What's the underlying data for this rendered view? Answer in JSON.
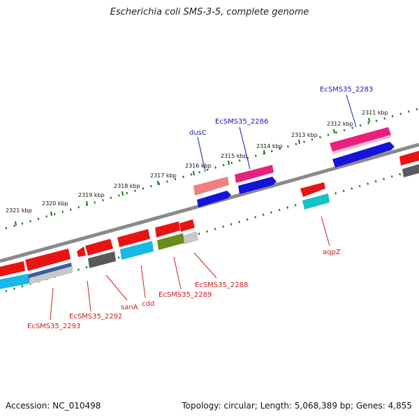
{
  "title": "Escherichia coli SMS-3-5, complete genome",
  "footer": {
    "accession": "Accession: NC_010498",
    "summary": "Topology: circular; Length: 5,068,389 bp; Genes: 4,855"
  },
  "colors": {
    "backbone": "#808080",
    "scale_ticks": "#1a7a1a",
    "label_top_strand": "#1a1aa8",
    "label_bottom_strand": "#c81e1e"
  },
  "ruler": [
    {
      "label": "2311 kbp"
    },
    {
      "label": "2312 kbp"
    },
    {
      "label": "2313 kbp"
    },
    {
      "label": "2314 kbp"
    },
    {
      "label": "2315 kbp"
    },
    {
      "label": "2316 kbp"
    },
    {
      "label": "2317 kbp"
    },
    {
      "label": "2318 kbp"
    },
    {
      "label": "2319 kbp"
    },
    {
      "label": "2320 kbp"
    },
    {
      "label": "2321 kbp"
    }
  ],
  "gene_labels": {
    "ecsms35_2283": "EcSMS35_2283",
    "ecsms35_2286": "EcSMS35_2286",
    "dusc": "dusC",
    "aqpz": "aqpZ",
    "ecsms35_2288": "EcSMS35_2288",
    "ecsms35_2289": "EcSMS35_2289",
    "cdd": "cdd",
    "sana": "sanA",
    "ecsms35_2292": "EcSMS35_2292",
    "ecsms35_2293": "EcSMS35_2293"
  }
}
